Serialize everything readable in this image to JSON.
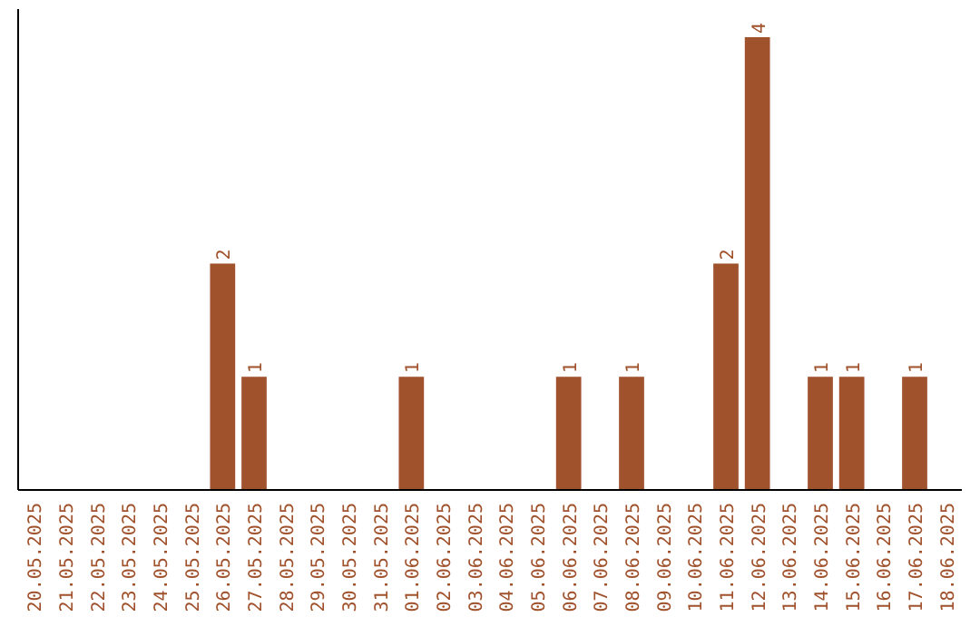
{
  "chart_data": {
    "type": "bar",
    "categories": [
      "20.05.2025",
      "21.05.2025",
      "22.05.2025",
      "23.05.2025",
      "24.05.2025",
      "25.05.2025",
      "26.05.2025",
      "27.05.2025",
      "28.05.2025",
      "29.05.2025",
      "30.05.2025",
      "31.05.2025",
      "01.06.2025",
      "02.06.2025",
      "03.06.2025",
      "04.06.2025",
      "05.06.2025",
      "06.06.2025",
      "07.06.2025",
      "08.06.2025",
      "09.06.2025",
      "10.06.2025",
      "11.06.2025",
      "12.06.2025",
      "13.06.2025",
      "14.06.2025",
      "15.06.2025",
      "16.06.2025",
      "17.06.2025",
      "18.06.2025"
    ],
    "values": [
      0,
      0,
      0,
      0,
      0,
      0,
      2,
      1,
      0,
      0,
      0,
      0,
      1,
      0,
      0,
      0,
      0,
      1,
      0,
      1,
      0,
      0,
      2,
      4,
      0,
      1,
      1,
      0,
      1,
      0
    ],
    "value_labels": [
      null,
      null,
      null,
      null,
      null,
      null,
      "2",
      "1",
      null,
      null,
      null,
      null,
      "1",
      null,
      null,
      null,
      null,
      "1",
      null,
      "1",
      null,
      null,
      "2",
      "4",
      null,
      "1",
      "1",
      null,
      "1",
      null
    ],
    "color": "#a0522d"
  }
}
